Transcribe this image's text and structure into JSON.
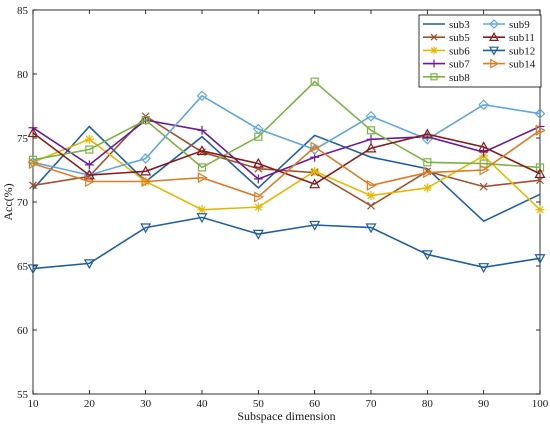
{
  "chart_data": {
    "type": "line",
    "title": "",
    "xlabel": "Subspace dimension",
    "ylabel": "Acc(%)",
    "x": [
      10,
      20,
      30,
      40,
      50,
      60,
      70,
      80,
      90,
      100
    ],
    "xlim": [
      10,
      100
    ],
    "ylim": [
      55,
      85
    ],
    "xticks": [
      "10",
      "20",
      "30",
      "40",
      "50",
      "60",
      "70",
      "80",
      "90",
      "100"
    ],
    "yticks": [
      "55",
      "60",
      "65",
      "70",
      "75",
      "80",
      "85"
    ],
    "grid": false,
    "legend_position": "top-right",
    "series": [
      {
        "name": "sub3",
        "color": "#1f5fa8",
        "marker": "none",
        "values": [
          71.0,
          75.9,
          71.6,
          75.1,
          71.1,
          75.2,
          73.5,
          72.6,
          68.5,
          70.6
        ]
      },
      {
        "name": "sub5",
        "color": "#a0522d",
        "marker": "x",
        "values": [
          71.3,
          72.0,
          76.7,
          73.9,
          72.6,
          72.3,
          69.7,
          72.4,
          71.2,
          71.7
        ]
      },
      {
        "name": "sub6",
        "color": "#e6b800",
        "marker": "star",
        "values": [
          73.1,
          74.9,
          71.6,
          69.4,
          69.6,
          72.4,
          70.5,
          71.1,
          73.6,
          69.4
        ]
      },
      {
        "name": "sub7",
        "color": "#6a1b9a",
        "marker": "plus",
        "values": [
          75.8,
          72.9,
          76.4,
          75.6,
          71.8,
          73.5,
          74.9,
          75.1,
          73.9,
          75.9
        ]
      },
      {
        "name": "sub8",
        "color": "#7cb342",
        "marker": "square",
        "values": [
          73.3,
          74.1,
          76.4,
          72.7,
          75.1,
          79.4,
          75.6,
          73.1,
          73.0,
          72.7
        ]
      },
      {
        "name": "sub9",
        "color": "#5ea7e3",
        "marker": "diamond",
        "values": [
          73.1,
          72.1,
          73.4,
          78.3,
          75.7,
          74.1,
          76.7,
          74.9,
          77.6,
          76.9
        ]
      },
      {
        "name": "sub11",
        "color": "#8b1a1a",
        "marker": "triangle-up",
        "values": [
          75.4,
          72.1,
          72.4,
          74.0,
          73.0,
          71.4,
          74.2,
          75.3,
          74.3,
          72.2
        ]
      },
      {
        "name": "sub12",
        "color": "#1e5fa0",
        "marker": "triangle-down",
        "values": [
          64.8,
          65.2,
          68.0,
          68.8,
          67.5,
          68.2,
          68.0,
          65.9,
          64.9,
          65.6
        ]
      },
      {
        "name": "sub14",
        "color": "#e07b24",
        "marker": "triangle-right",
        "values": [
          73.0,
          71.6,
          71.6,
          71.9,
          70.4,
          74.3,
          71.3,
          72.3,
          72.5,
          75.6
        ]
      }
    ]
  }
}
